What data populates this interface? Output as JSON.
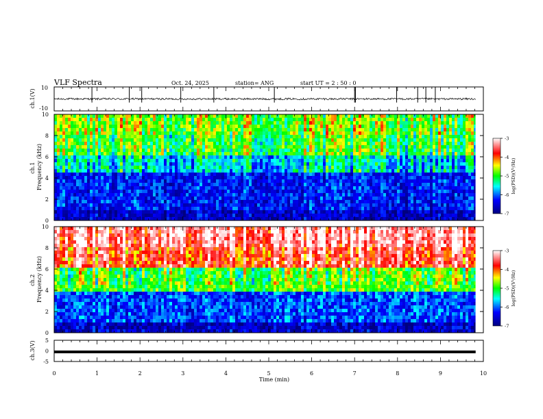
{
  "header": {
    "title": "VLF Spectra",
    "date": "Oct. 24, 2025",
    "station": "station= ANG",
    "start_ut": "start  UT =   2  : 50 : 0"
  },
  "chart_data": [
    {
      "id": "ch1-waveform",
      "type": "line",
      "ylabel": "ch.1(V)",
      "ylim": [
        -10,
        10
      ],
      "y_ticks": [
        "10",
        "-10"
      ],
      "baseline": 0,
      "spike_times_min": [
        0.88,
        1.75,
        2.04,
        2.95,
        3.72,
        5.13,
        7.0,
        7.02,
        7.98,
        8.47,
        8.66,
        8.88
      ]
    },
    {
      "id": "ch1-spectrogram",
      "type": "heatmap",
      "ylabel": "ch.1\nFrequency (kHz)",
      "ylim": [
        0,
        10
      ],
      "y_ticks": [
        "0",
        "2",
        "4",
        "6",
        "8",
        "10"
      ],
      "colorbar": {
        "label": "log(PSD)(V²/Hz)",
        "range": [
          -7,
          -3
        ],
        "ticks": [
          "-3",
          "-4",
          "-5",
          "-6",
          "-7"
        ]
      },
      "mean_level_by_band_kHz": [
        {
          "band": [
            0,
            1
          ],
          "level": -6.6
        },
        {
          "band": [
            1,
            4.5
          ],
          "level": -6.3
        },
        {
          "band": [
            4.5,
            6
          ],
          "level": -5.6
        },
        {
          "band": [
            6,
            8
          ],
          "level": -5.0
        },
        {
          "band": [
            8,
            10
          ],
          "level": -4.8
        }
      ]
    },
    {
      "id": "ch2-spectrogram",
      "type": "heatmap",
      "ylabel": "ch.2\nFrequency (kHz)",
      "ylim": [
        0,
        10
      ],
      "y_ticks": [
        "0",
        "2",
        "4",
        "6",
        "8",
        "10"
      ],
      "colorbar": {
        "label": "log(PSD)(V²/Hz)",
        "range": [
          -7,
          -3
        ],
        "ticks": [
          "-3",
          "-4",
          "-5",
          "-6",
          "-7"
        ]
      },
      "mean_level_by_band_kHz": [
        {
          "band": [
            0,
            1
          ],
          "level": -6.6
        },
        {
          "band": [
            1,
            4
          ],
          "level": -6.1
        },
        {
          "band": [
            4,
            6
          ],
          "level": -4.9
        },
        {
          "band": [
            6,
            8
          ],
          "level": -3.7
        },
        {
          "band": [
            8,
            10
          ],
          "level": -3.3
        }
      ]
    },
    {
      "id": "ch3-trace",
      "type": "line",
      "ylabel": "ch.3(V)",
      "ylim": [
        -5,
        5
      ],
      "y_ticks": [
        "5",
        "0",
        "-5"
      ],
      "value": -0.5
    }
  ],
  "x_axis": {
    "label": "Time  (min)",
    "range": [
      0,
      10
    ],
    "ticks": [
      "0",
      "1",
      "2",
      "3",
      "4",
      "5",
      "6",
      "7",
      "8",
      "9",
      "10"
    ],
    "data_end_min": 9.82
  }
}
